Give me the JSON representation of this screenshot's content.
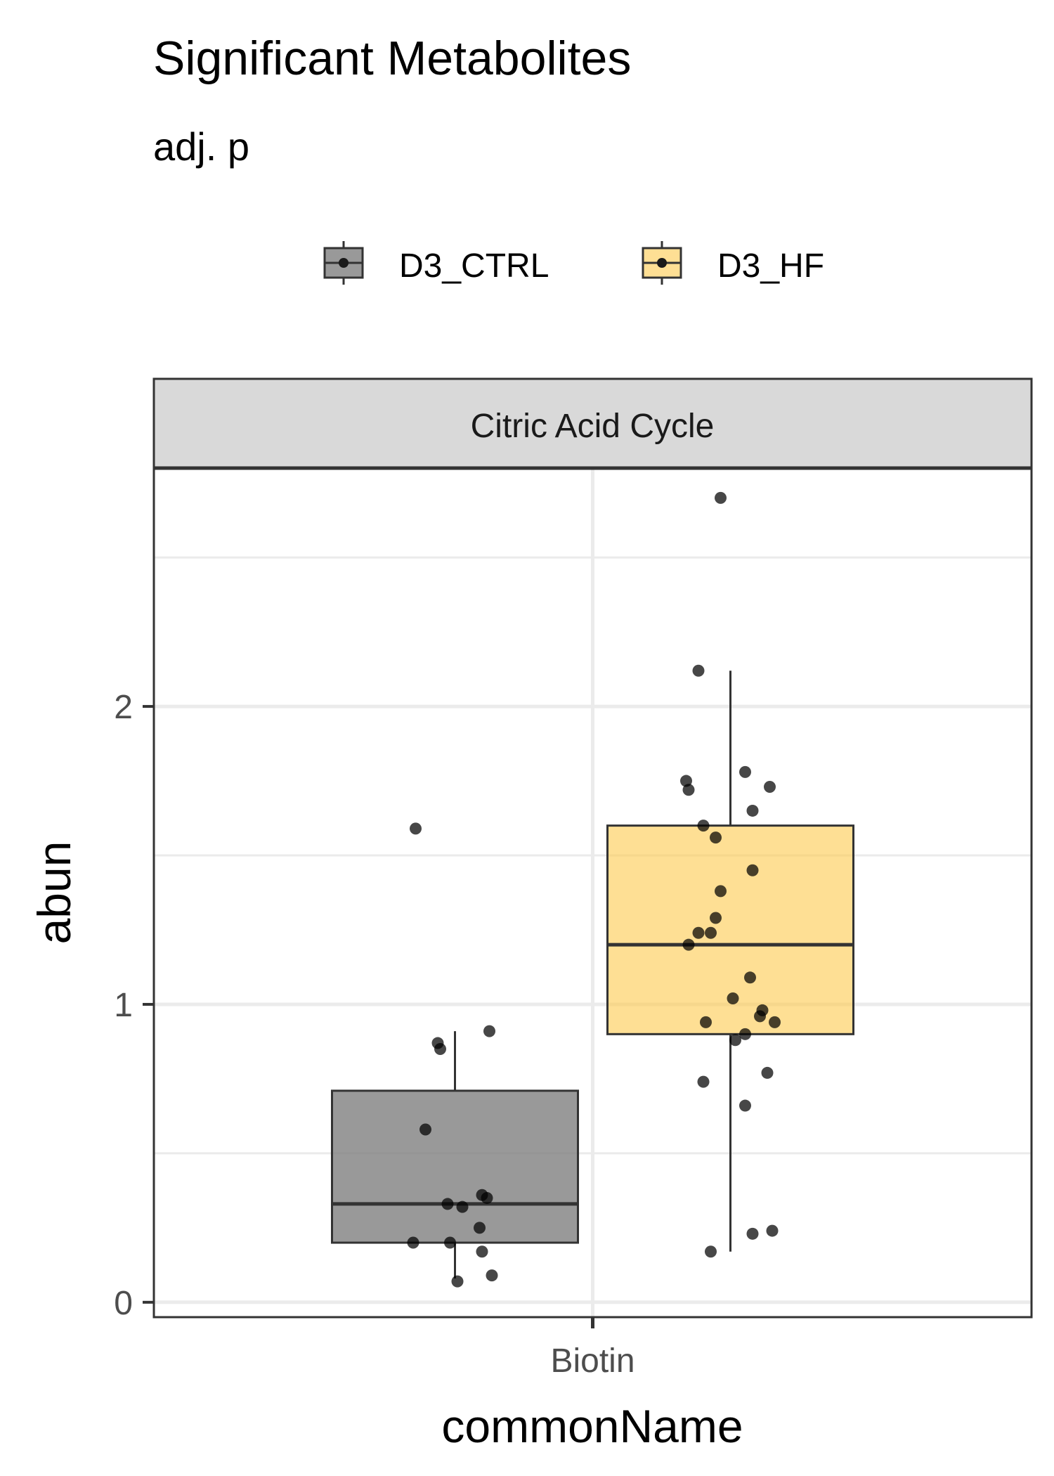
{
  "chart_data": {
    "type": "box",
    "title": "Significant Metabolites",
    "subtitle": "adj. p",
    "facet": "Citric Acid Cycle",
    "xlabel": "commonName",
    "ylabel": "abun",
    "categories": [
      "Biotin"
    ],
    "y_ticks": [
      0,
      1,
      2
    ],
    "ylim": [
      -0.05,
      2.8
    ],
    "grid": true,
    "legend_position": "top",
    "series": [
      {
        "name": "D3_CTRL",
        "color": "#7f7f7f",
        "box": {
          "min": 0.08,
          "q1": 0.2,
          "median": 0.33,
          "q3": 0.71,
          "max": 0.91
        },
        "points": [
          1.59,
          0.91,
          0.87,
          0.85,
          0.58,
          0.36,
          0.35,
          0.33,
          0.32,
          0.25,
          0.2,
          0.2,
          0.17,
          0.09,
          0.07
        ],
        "jitter": [
          -0.16,
          0.14,
          -0.07,
          -0.06,
          -0.12,
          0.11,
          0.13,
          -0.03,
          0.03,
          0.1,
          -0.17,
          -0.02,
          0.11,
          0.15,
          0.01
        ]
      },
      {
        "name": "D3_HF",
        "color": "#fdc94d",
        "box": {
          "min": 0.17,
          "q1": 0.9,
          "median": 1.2,
          "q3": 1.6,
          "max": 2.12
        },
        "points": [
          2.7,
          2.12,
          1.78,
          1.75,
          1.73,
          1.72,
          1.65,
          1.6,
          1.56,
          1.45,
          1.38,
          1.29,
          1.24,
          1.24,
          1.2,
          1.09,
          1.02,
          0.98,
          0.96,
          0.94,
          0.94,
          0.9,
          0.88,
          0.77,
          0.74,
          0.66,
          0.24,
          0.23,
          0.17
        ],
        "jitter": [
          -0.04,
          -0.13,
          0.06,
          -0.18,
          0.16,
          -0.17,
          0.09,
          -0.11,
          -0.06,
          0.09,
          -0.04,
          -0.06,
          -0.13,
          -0.08,
          -0.17,
          0.08,
          0.01,
          0.13,
          0.12,
          -0.1,
          0.18,
          0.06,
          0.02,
          0.15,
          -0.11,
          0.06,
          0.17,
          0.09,
          -0.08
        ]
      }
    ]
  }
}
